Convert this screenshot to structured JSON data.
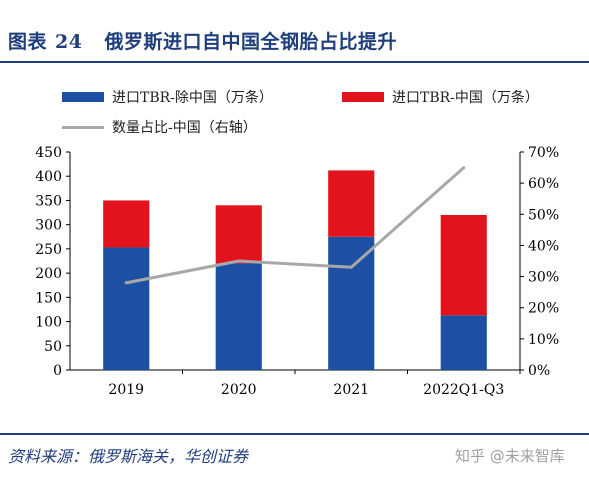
{
  "header": {
    "figure_label": "图表",
    "figure_number": "24",
    "title": "俄罗斯进口自中国全钢胎占比提升"
  },
  "footer": {
    "source": "资料来源：俄罗斯海关，华创证券",
    "watermark": "知乎 @未来智库"
  },
  "colors": {
    "series_excl_china": "#1d4fa3",
    "series_china": "#e2131c",
    "series_share": "#a8a8a8",
    "title": "#1f3e7c"
  },
  "chart_data": {
    "type": "bar",
    "stacked": true,
    "categories": [
      "2019",
      "2020",
      "2021",
      "2022Q1-Q3"
    ],
    "series": [
      {
        "name": "进口TBR-除中国（万条）",
        "type": "bar",
        "axis": "left",
        "values": [
          253,
          220,
          275,
          113
        ]
      },
      {
        "name": "进口TBR-中国（万条）",
        "type": "bar",
        "axis": "left",
        "values": [
          97,
          120,
          137,
          207
        ]
      },
      {
        "name": "数量占比-中国（右轴）",
        "type": "line",
        "axis": "right",
        "values": [
          0.28,
          0.35,
          0.33,
          0.65
        ]
      }
    ],
    "y_left": {
      "min": 0,
      "max": 450,
      "ticks": [
        "0",
        "50",
        "100",
        "150",
        "200",
        "250",
        "300",
        "350",
        "400",
        "450"
      ]
    },
    "y_right": {
      "min": 0,
      "max": 0.7,
      "ticks": [
        "0%",
        "10%",
        "20%",
        "30%",
        "40%",
        "50%",
        "60%",
        "70%"
      ]
    },
    "legend_position": "top",
    "grid": false
  }
}
